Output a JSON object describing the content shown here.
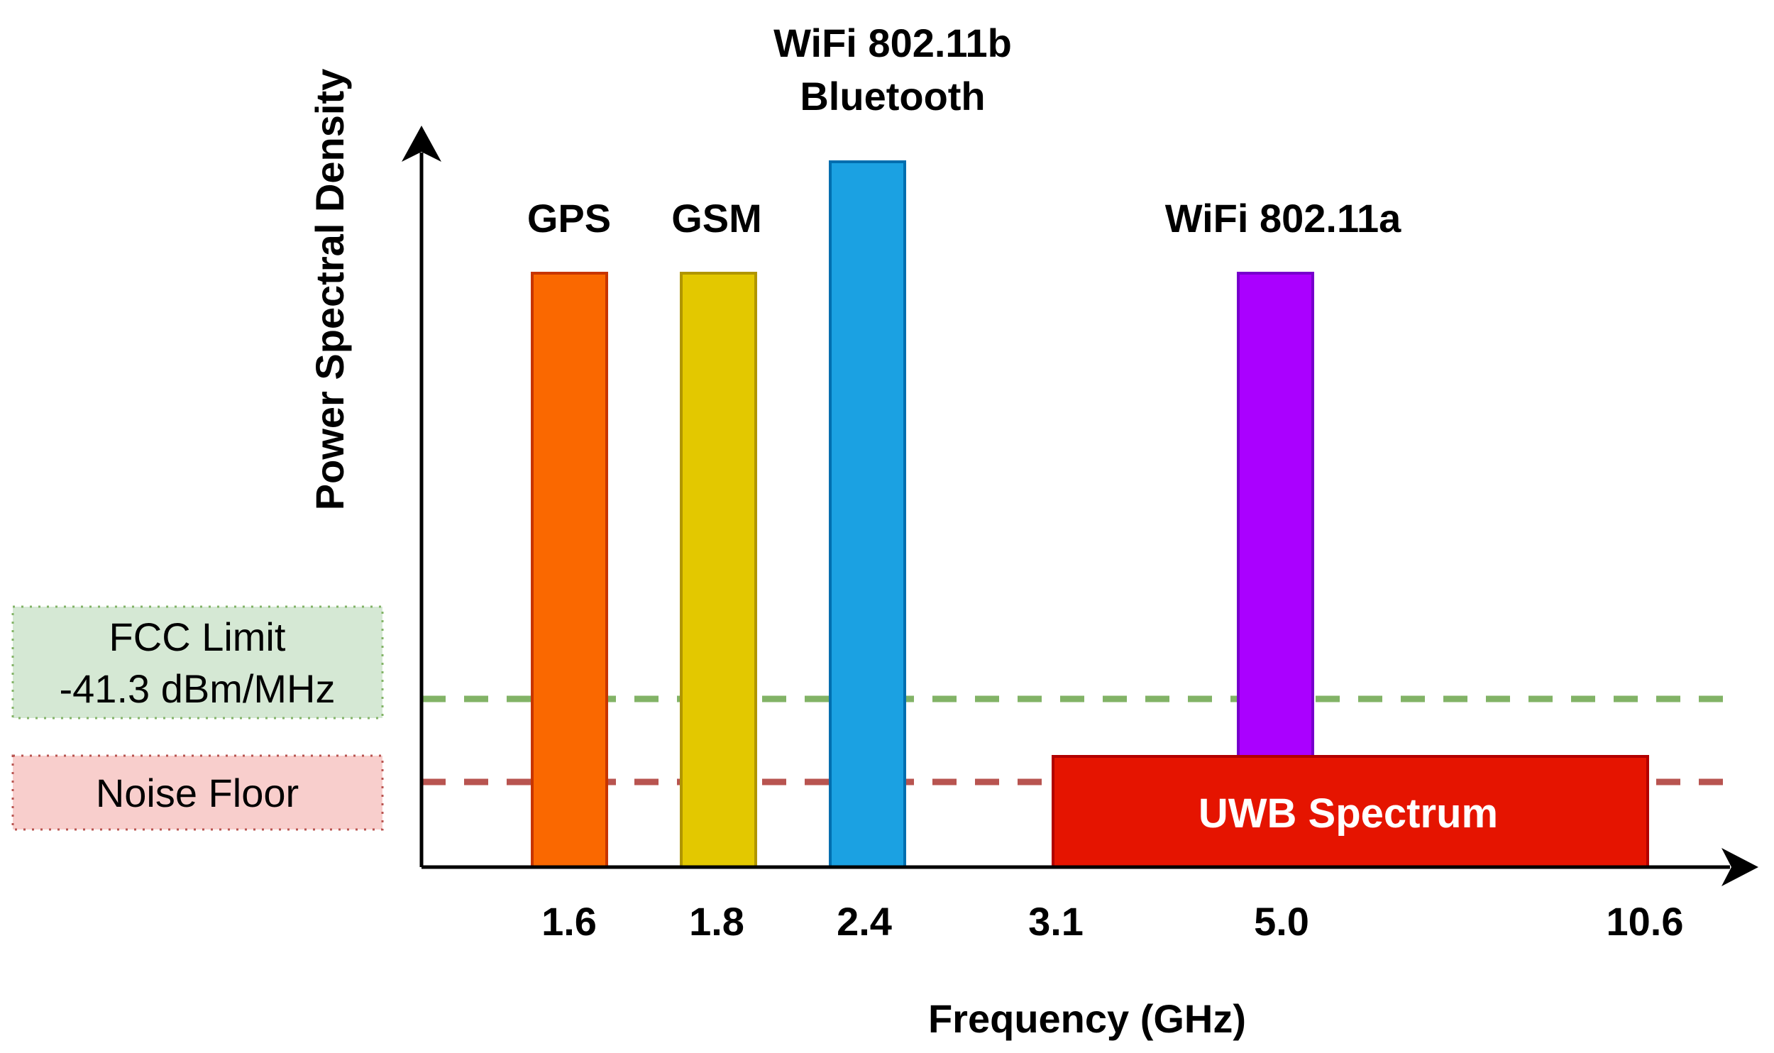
{
  "diagram": {
    "y_axis_label": "Power Spectral Density",
    "x_axis_label": "Frequency (GHz)",
    "bands": [
      {
        "id": "gps",
        "label": "GPS",
        "tick": "1.6",
        "fill": "#fa6800",
        "stroke": "#c73500"
      },
      {
        "id": "gsm",
        "label": "GSM",
        "tick": "1.8",
        "fill": "#e3c800",
        "stroke": "#b09500"
      },
      {
        "id": "wifi-b",
        "label_line1": "WiFi 802.11b",
        "label_line2": "Bluetooth",
        "tick": "2.4",
        "fill": "#1ba1e2",
        "stroke": "#006eaf"
      },
      {
        "id": "wifi-a",
        "label": "WiFi 802.11a",
        "tick": "5.0",
        "fill": "#aa00ff",
        "stroke": "#7700cc"
      }
    ],
    "uwb": {
      "label": "UWB Spectrum",
      "tick_start": "3.1",
      "tick_end": "10.6",
      "fill": "#e51400",
      "stroke": "#b20000"
    },
    "fcc_limit": {
      "line1": "FCC Limit",
      "line2": "-41.3 dBm/MHz",
      "line_color": "#82b366",
      "box_fill": "#d5e8d4"
    },
    "noise_floor": {
      "label": "Noise Floor",
      "line_color": "#b85450",
      "box_fill": "#f8cecc"
    }
  }
}
